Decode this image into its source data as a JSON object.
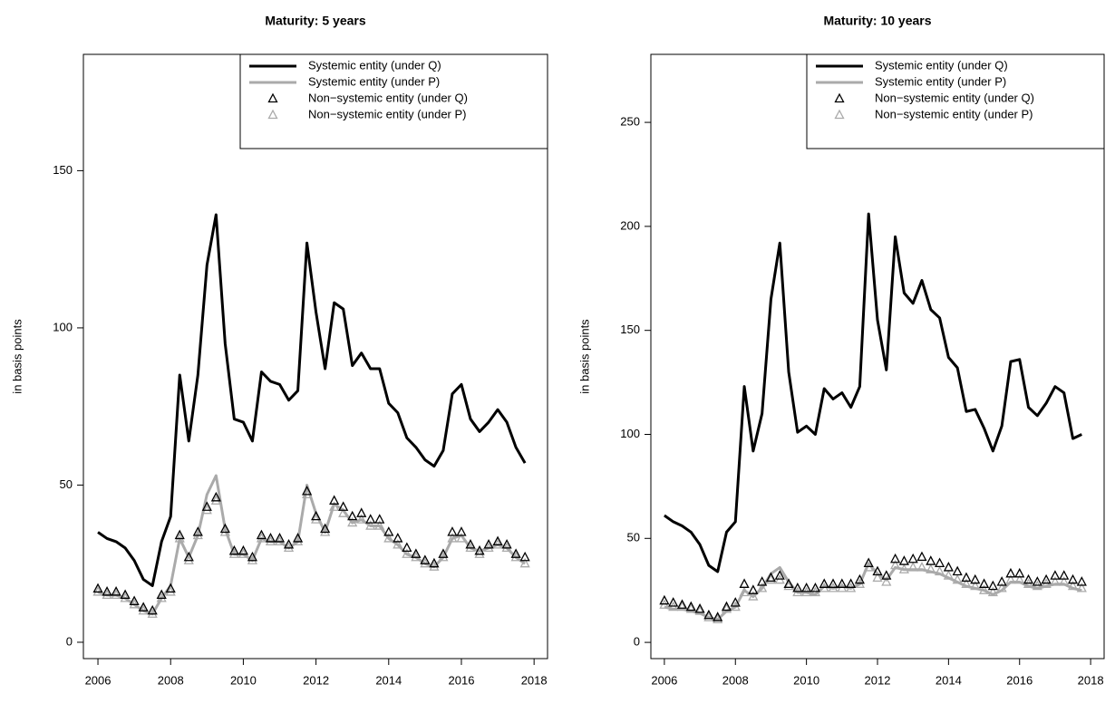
{
  "chart_data": [
    {
      "type": "line",
      "title": "Maturity: 5 years",
      "ylabel": "in basis points",
      "legend": "topright",
      "x": [
        2006,
        2006.25,
        2006.5,
        2006.75,
        2007,
        2007.25,
        2007.5,
        2007.75,
        2008,
        2008.25,
        2008.5,
        2008.75,
        2009,
        2009.25,
        2009.5,
        2009.75,
        2010,
        2010.25,
        2010.5,
        2010.75,
        2011,
        2011.25,
        2011.5,
        2011.75,
        2012,
        2012.25,
        2012.5,
        2012.75,
        2013,
        2013.25,
        2013.5,
        2013.75,
        2014,
        2014.25,
        2014.5,
        2014.75,
        2015,
        2015.25,
        2015.5,
        2015.75,
        2016,
        2016.25,
        2016.5,
        2016.75,
        2017,
        2017.25,
        2017.5,
        2017.75
      ],
      "xlim": [
        2005.6,
        2018.37
      ],
      "ylim": [
        -5.2,
        187
      ],
      "xticks": [
        2006,
        2008,
        2010,
        2012,
        2014,
        2016,
        2018
      ],
      "yticks": [
        0,
        50,
        100,
        150
      ],
      "series": [
        {
          "name": "Systemic entity (under Q)",
          "color": "#000000",
          "marker": "none",
          "values": [
            35,
            33,
            32,
            30,
            26,
            20,
            18,
            32,
            40,
            85,
            64,
            85,
            120,
            136,
            95,
            71,
            70,
            64,
            86,
            83,
            82,
            77,
            80,
            127,
            105,
            87,
            108,
            106,
            88,
            92,
            87,
            87,
            76,
            73,
            65,
            62,
            58,
            56,
            61,
            79,
            82,
            71,
            67,
            70,
            74,
            70,
            62,
            57
          ]
        },
        {
          "name": "Systemic entity (under P)",
          "color": "#aaaaaa",
          "marker": "none",
          "values": [
            16,
            15,
            15,
            14,
            12,
            10,
            9,
            14,
            18,
            33,
            27,
            34,
            47,
            53,
            36,
            28,
            28,
            26,
            33,
            32,
            32,
            30,
            32,
            50,
            41,
            35,
            44,
            42,
            38,
            39,
            37,
            37,
            33,
            31,
            28,
            27,
            25,
            24,
            27,
            33,
            34,
            30,
            29,
            30,
            31,
            30,
            27,
            25
          ]
        },
        {
          "name": "Non−systemic entity (under Q)",
          "color": "#000000",
          "marker": "triangle",
          "values": [
            17,
            16,
            16,
            15,
            13,
            11,
            10,
            15,
            17,
            34,
            27,
            35,
            43,
            46,
            36,
            29,
            29,
            27,
            34,
            33,
            33,
            31,
            33,
            48,
            40,
            36,
            45,
            43,
            40,
            41,
            39,
            39,
            35,
            33,
            30,
            28,
            26,
            25,
            28,
            35,
            35,
            31,
            29,
            31,
            32,
            31,
            28,
            27
          ]
        },
        {
          "name": "Non−systemic entity (under P)",
          "color": "#aaaaaa",
          "marker": "triangle",
          "values": [
            16,
            15,
            15,
            14,
            12,
            10,
            9,
            14,
            16,
            33,
            26,
            34,
            42,
            45,
            35,
            28,
            28,
            26,
            33,
            32,
            32,
            30,
            32,
            47,
            39,
            35,
            43,
            41,
            38,
            39,
            37,
            37,
            33,
            31,
            28,
            27,
            25,
            24,
            27,
            33,
            33,
            30,
            28,
            30,
            31,
            30,
            27,
            25
          ]
        }
      ]
    },
    {
      "type": "line",
      "title": "Maturity: 10 years",
      "ylabel": "in basis points",
      "legend": "topright",
      "x": [
        2006,
        2006.25,
        2006.5,
        2006.75,
        2007,
        2007.25,
        2007.5,
        2007.75,
        2008,
        2008.25,
        2008.5,
        2008.75,
        2009,
        2009.25,
        2009.5,
        2009.75,
        2010,
        2010.25,
        2010.5,
        2010.75,
        2011,
        2011.25,
        2011.5,
        2011.75,
        2012,
        2012.25,
        2012.5,
        2012.75,
        2013,
        2013.25,
        2013.5,
        2013.75,
        2014,
        2014.25,
        2014.5,
        2014.75,
        2015,
        2015.25,
        2015.5,
        2015.75,
        2016,
        2016.25,
        2016.5,
        2016.75,
        2017,
        2017.25,
        2017.5,
        2017.75
      ],
      "xlim": [
        2005.62,
        2018.38
      ],
      "ylim": [
        -7.8,
        282.7
      ],
      "xticks": [
        2006,
        2008,
        2010,
        2012,
        2014,
        2016,
        2018
      ],
      "yticks": [
        0,
        50,
        100,
        150,
        200,
        250
      ],
      "series": [
        {
          "name": "Systemic entity (under Q)",
          "color": "#000000",
          "marker": "none",
          "values": [
            61,
            58,
            56,
            53,
            47,
            37,
            34,
            53,
            58,
            123,
            92,
            110,
            165,
            192,
            130,
            101,
            104,
            100,
            122,
            117,
            120,
            113,
            123,
            206,
            155,
            131,
            195,
            168,
            163,
            174,
            160,
            156,
            137,
            132,
            111,
            112,
            103,
            92,
            104,
            135,
            136,
            113,
            109,
            115,
            123,
            120,
            98,
            100
          ]
        },
        {
          "name": "Systemic entity (under P)",
          "color": "#aaaaaa",
          "marker": "none",
          "values": [
            17,
            16,
            16,
            15,
            14,
            12,
            11,
            15,
            17,
            25,
            22,
            26,
            33,
            36,
            29,
            24,
            24,
            23,
            27,
            26,
            27,
            26,
            28,
            38,
            33,
            30,
            36,
            35,
            35,
            35,
            34,
            33,
            31,
            29,
            27,
            26,
            25,
            23,
            25,
            29,
            29,
            27,
            26,
            27,
            28,
            28,
            26,
            25
          ]
        },
        {
          "name": "Non−systemic entity (under Q)",
          "color": "#000000",
          "marker": "triangle",
          "values": [
            20,
            19,
            18,
            17,
            16,
            13,
            12,
            17,
            19,
            28,
            25,
            29,
            31,
            32,
            28,
            26,
            26,
            26,
            28,
            28,
            28,
            28,
            30,
            38,
            34,
            32,
            40,
            39,
            40,
            41,
            39,
            38,
            36,
            34,
            31,
            30,
            28,
            27,
            29,
            33,
            33,
            30,
            29,
            30,
            32,
            32,
            30,
            29
          ]
        },
        {
          "name": "Non−systemic entity (under P)",
          "color": "#aaaaaa",
          "marker": "triangle",
          "values": [
            18,
            17,
            17,
            16,
            15,
            12,
            11,
            16,
            17,
            24,
            22,
            26,
            30,
            30,
            27,
            24,
            24,
            24,
            26,
            26,
            26,
            26,
            28,
            36,
            31,
            29,
            37,
            35,
            36,
            36,
            35,
            34,
            32,
            30,
            28,
            27,
            25,
            24,
            26,
            30,
            30,
            28,
            27,
            28,
            29,
            29,
            27,
            26
          ]
        }
      ]
    }
  ]
}
